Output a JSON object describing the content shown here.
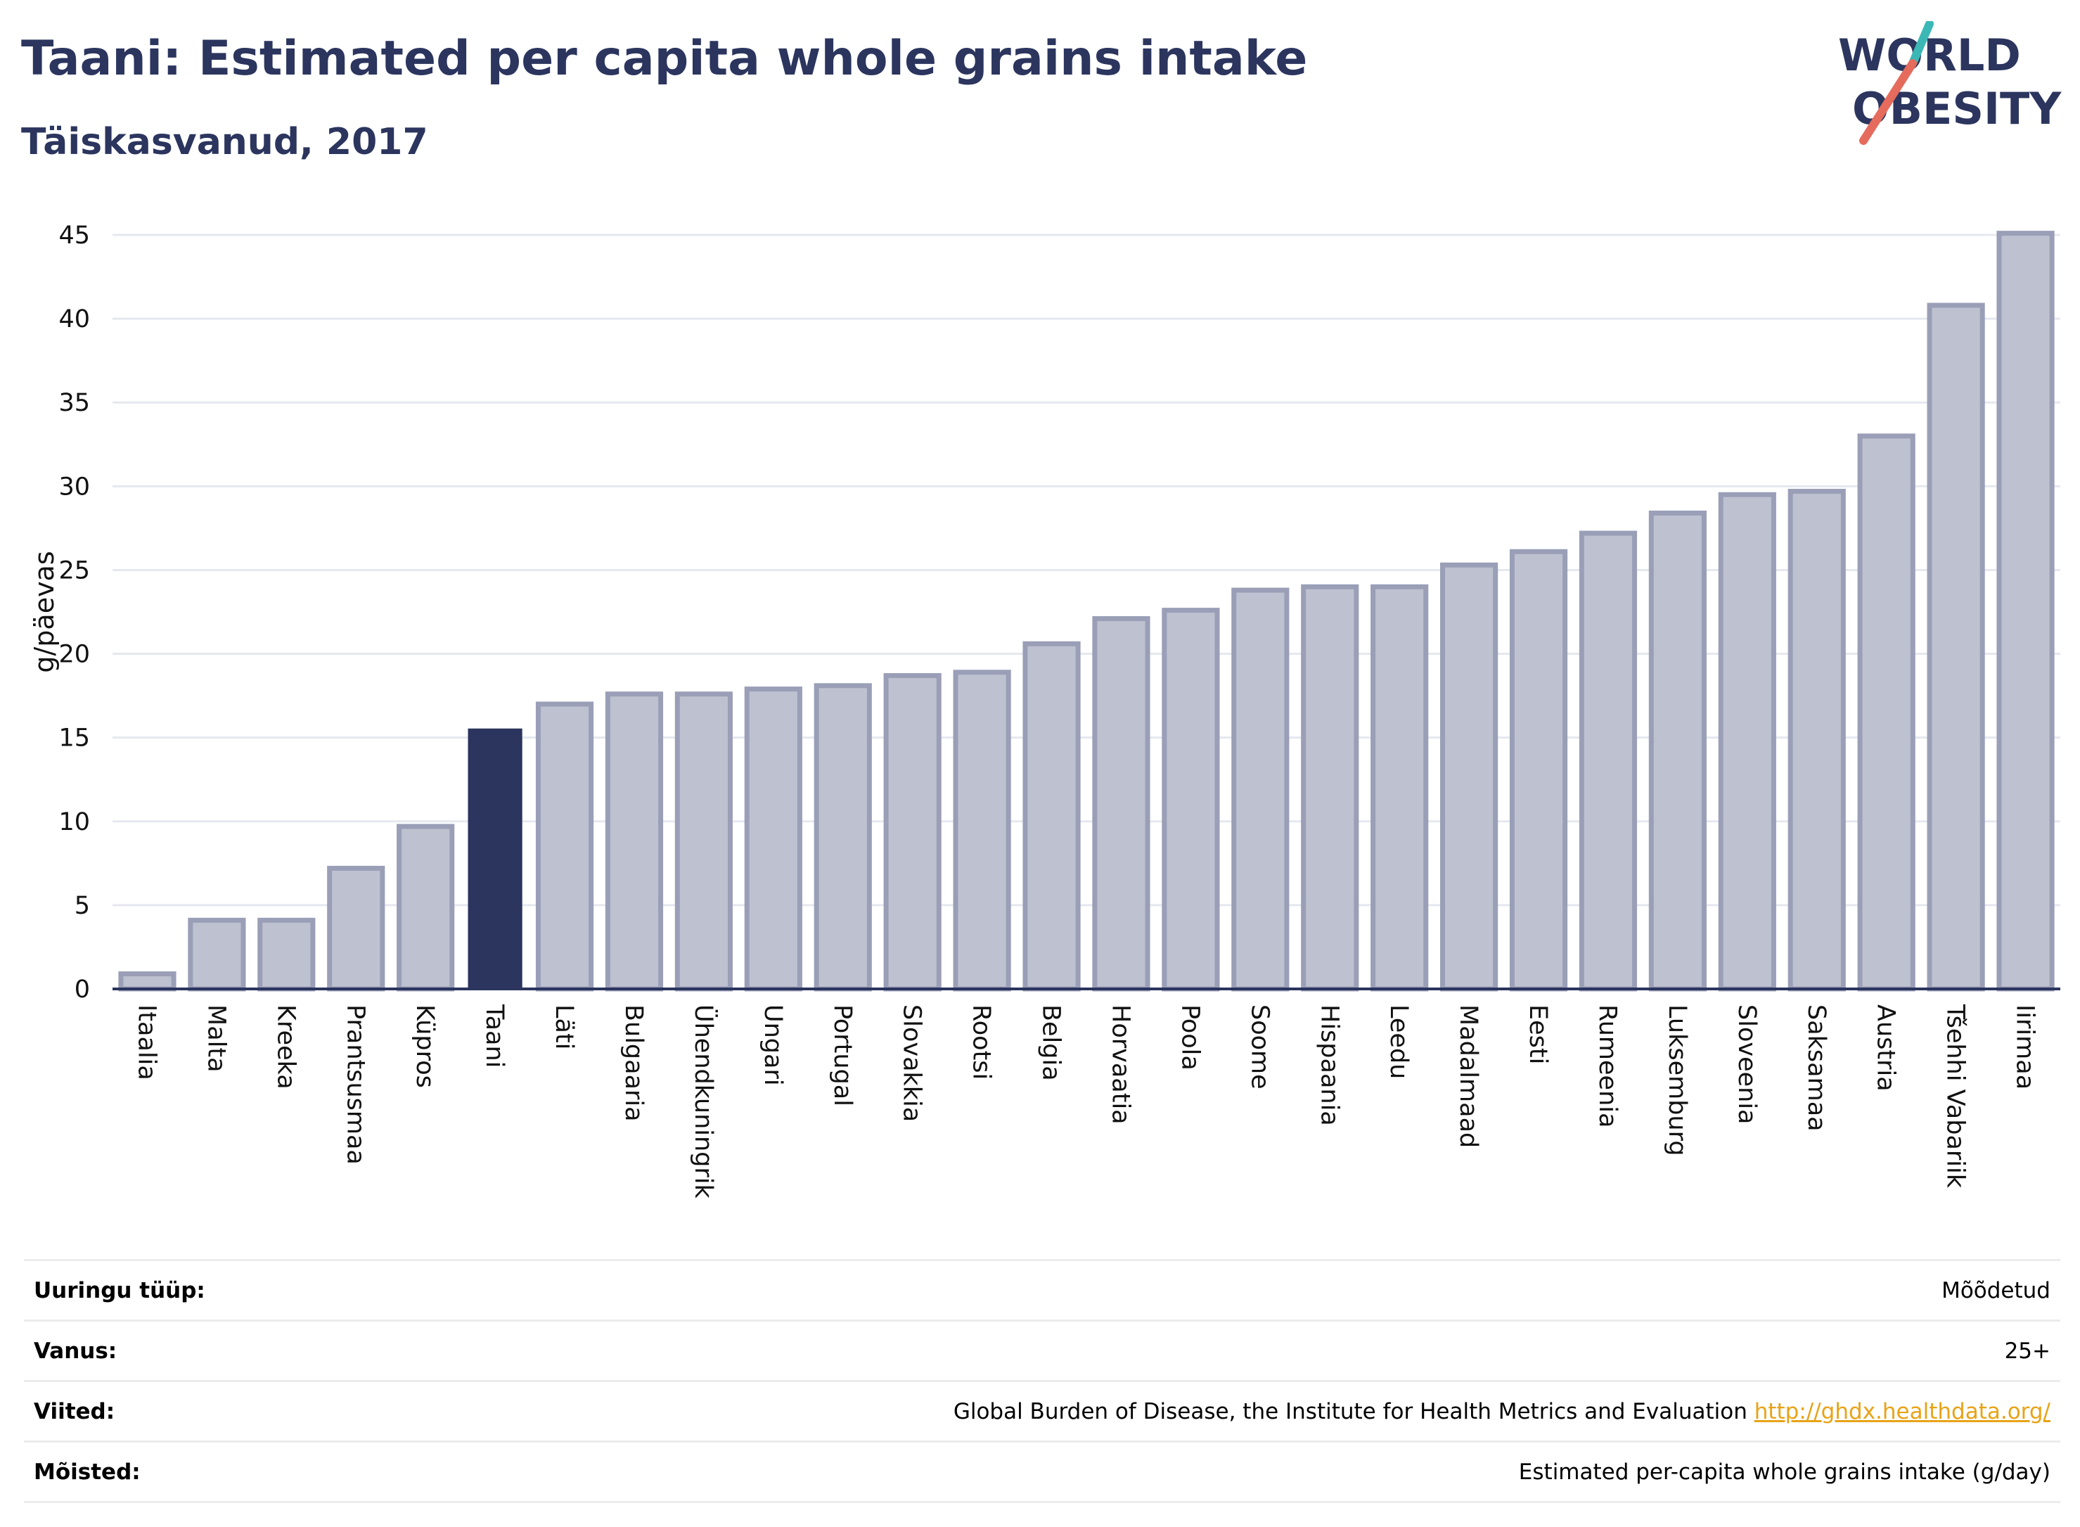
{
  "header": {
    "title": "Taani: Estimated per capita whole grains intake",
    "subtitle": "Täiskasvanud, 2017"
  },
  "logo": {
    "line1": "WORLD",
    "line2": "OBESITY"
  },
  "colors": {
    "highlight": "#2b355e",
    "bar": "#bec1cf",
    "bar_border": "#9a9fb7",
    "axis": "#2b355e",
    "grid": "#e6e8ef"
  },
  "chart_data": {
    "type": "bar",
    "ylabel": "g/päevas",
    "ylim": [
      0,
      45
    ],
    "yticks": [
      0,
      5,
      10,
      15,
      20,
      25,
      30,
      35,
      40,
      45
    ],
    "grid": true,
    "highlight": "Taani",
    "categories": [
      "Itaalia",
      "Malta",
      "Kreeka",
      "Prantsusmaa",
      "Küpros",
      "Taani",
      "Läti",
      "Bulgaaria",
      "Ühendkuningrik",
      "Ungari",
      "Portugal",
      "Slovakkia",
      "Rootsi",
      "Belgia",
      "Horvaatia",
      "Poola",
      "Soome",
      "Hispaania",
      "Leedu",
      "Madalmaad",
      "Eesti",
      "Rumeenia",
      "Luksemburg",
      "Sloveenia",
      "Saksamaa",
      "Austria",
      "Tšehhi Vabariik",
      "Iirimaa"
    ],
    "values": [
      0.9,
      4.1,
      4.1,
      7.2,
      9.7,
      15.5,
      17.0,
      17.6,
      17.6,
      17.9,
      18.1,
      18.7,
      18.9,
      20.6,
      22.1,
      22.6,
      23.8,
      24.0,
      24.0,
      25.3,
      26.1,
      27.2,
      28.4,
      29.5,
      29.7,
      33.0,
      40.8,
      45.1
    ]
  },
  "info": [
    {
      "label": "Uuringu tüüp:",
      "value": "Mõõdetud",
      "link": ""
    },
    {
      "label": "Vanus:",
      "value": "25+",
      "link": ""
    },
    {
      "label": "Viited:",
      "value": "Global Burden of Disease, the Institute for Health Metrics and Evaluation ",
      "link": "http://ghdx.healthdata.org/"
    },
    {
      "label": "Mõisted:",
      "value": "Estimated per-capita whole grains intake (g/day)",
      "link": ""
    }
  ]
}
